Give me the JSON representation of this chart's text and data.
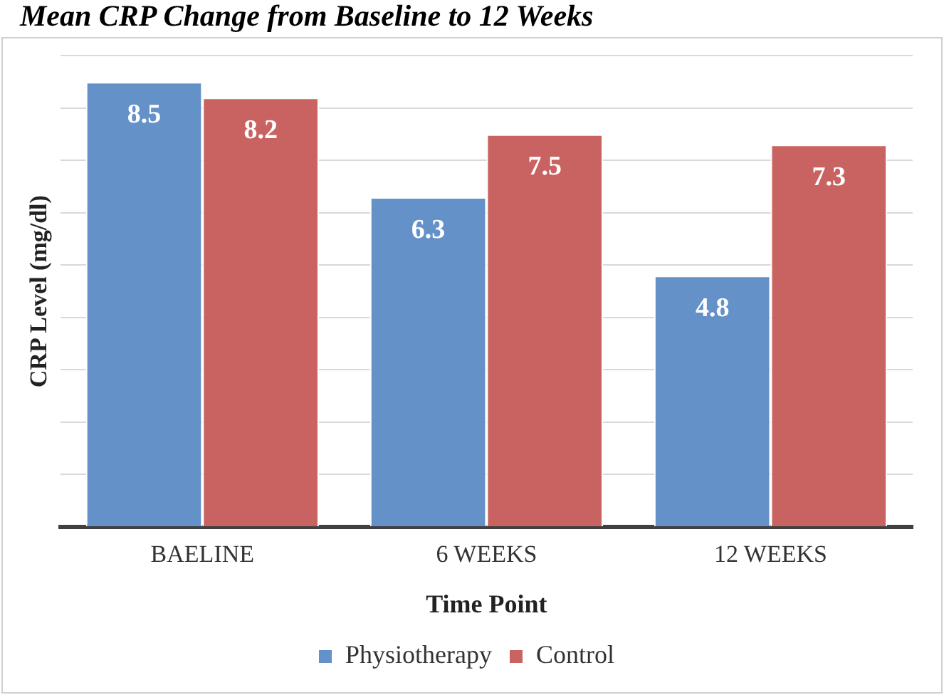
{
  "chart_data": {
    "type": "bar",
    "title": "Mean CRP Change from Baseline to 12 Weeks",
    "xlabel": "Time Point",
    "ylabel": "CRP Level (mg/dl)",
    "categories": [
      "BAELINE",
      "6 WEEKS",
      "12 WEEKS"
    ],
    "series": [
      {
        "name": "Physiotherapy",
        "color": "#6391c8",
        "values": [
          8.5,
          6.3,
          4.8
        ]
      },
      {
        "name": "Control",
        "color": "#c96361",
        "values": [
          8.2,
          7.5,
          7.3
        ]
      }
    ],
    "ylim": [
      0,
      9
    ],
    "yticks": [
      {
        "value": 0,
        "label": null
      },
      {
        "value": 1,
        "label": null
      },
      {
        "value": 2,
        "label": null
      },
      {
        "value": 3,
        "label": null
      },
      {
        "value": 4,
        "label": null
      },
      {
        "value": 5,
        "label": null
      },
      {
        "value": 6,
        "label": null
      },
      {
        "value": 7,
        "label": null
      },
      {
        "value": 8,
        "label": null
      },
      {
        "value": 9,
        "label": null
      }
    ],
    "tick_labels": "x",
    "grid": "y",
    "legend": "bottom",
    "data_labels": true
  }
}
